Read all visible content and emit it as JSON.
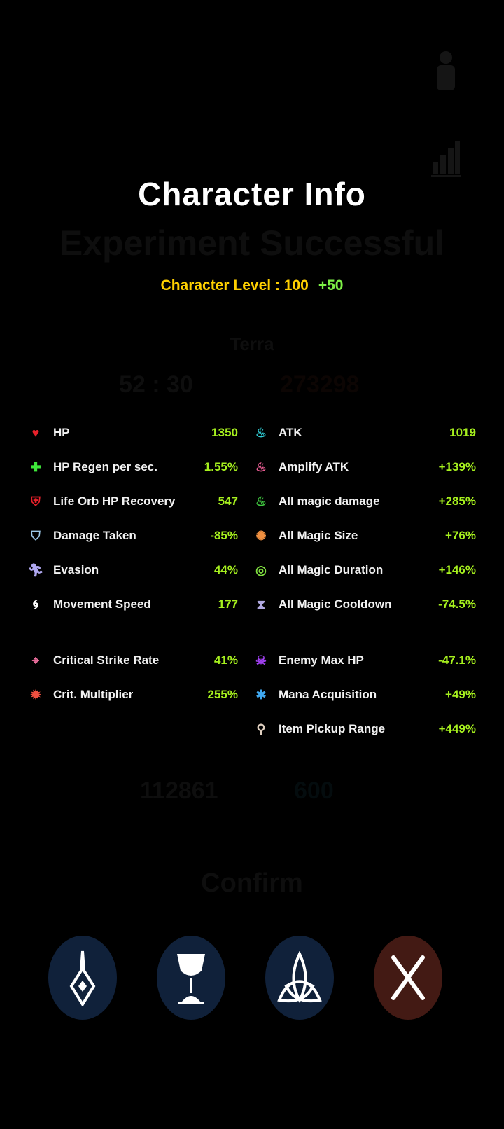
{
  "background": {
    "headline": "Experiment Successful",
    "name": "Terra",
    "timer": "52 : 30",
    "score": "273298",
    "stat_a": "112861",
    "stat_b": "600",
    "confirm_label": "Confirm"
  },
  "title": "Character Info",
  "level": {
    "label": "Character Level : 100",
    "bonus": "+50"
  },
  "colors": {
    "value": "#a6f01e",
    "level": "#ffd000",
    "bonus": "#7df046",
    "button_blue": "#10213a",
    "button_close": "#431a14"
  },
  "left_stats": [
    {
      "icon": "heart-icon",
      "label": "HP",
      "value": "1350"
    },
    {
      "icon": "plus-icon",
      "label": "HP Regen per sec.",
      "value": "1.55%"
    },
    {
      "icon": "life-orb-icon",
      "label": "Life Orb HP Recovery",
      "value": "547"
    },
    {
      "icon": "shield-icon",
      "label": "Damage Taken",
      "value": "-85%"
    },
    {
      "icon": "evasion-icon",
      "label": "Evasion",
      "value": "44%"
    },
    {
      "icon": "swirl-icon",
      "label": "Movement Speed",
      "value": "177"
    },
    {
      "icon": "crosshair-icon",
      "label": "Critical Strike Rate",
      "value": "41%"
    },
    {
      "icon": "burst-icon",
      "label": "Crit. Multiplier",
      "value": "255%"
    }
  ],
  "right_stats": [
    {
      "icon": "flame-cyan-icon",
      "label": "ATK",
      "value": "1019"
    },
    {
      "icon": "flame-pink-icon",
      "label": "Amplify ATK",
      "value": "+139%"
    },
    {
      "icon": "flame-green-icon",
      "label": "All magic damage",
      "value": "+285%"
    },
    {
      "icon": "wheel-icon",
      "label": "All Magic Size",
      "value": "+76%"
    },
    {
      "icon": "rings-icon",
      "label": "All Magic Duration",
      "value": "+146%"
    },
    {
      "icon": "hourglass-icon",
      "label": "All Magic Cooldown",
      "value": "-74.5%"
    },
    {
      "icon": "skull-icon",
      "label": "Enemy Max HP",
      "value": "-47.1%"
    },
    {
      "icon": "mana-icon",
      "label": "Mana Acquisition",
      "value": "+49%"
    },
    {
      "icon": "magnifier-icon",
      "label": "Item Pickup Range",
      "value": "+449%"
    }
  ],
  "buttons": [
    {
      "icon": "crystal-icon"
    },
    {
      "icon": "chalice-icon"
    },
    {
      "icon": "triquetra-icon"
    },
    {
      "icon": "close-icon"
    }
  ]
}
